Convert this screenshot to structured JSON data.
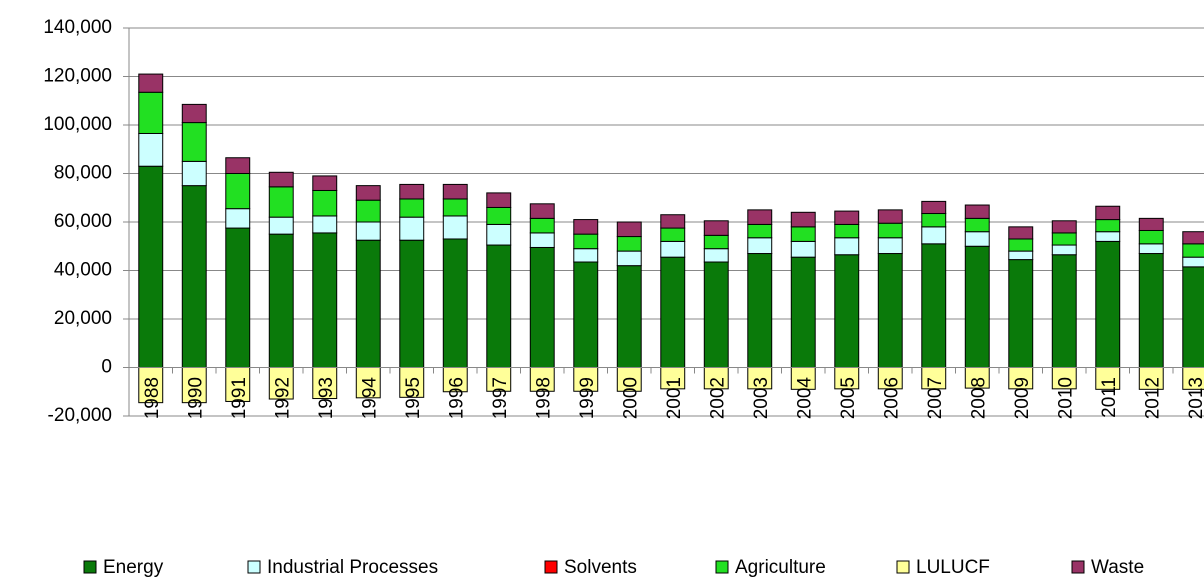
{
  "chart_data": {
    "type": "stacked-bar",
    "categories": [
      "1988",
      "1990",
      "1991",
      "1992",
      "1993",
      "1994",
      "1995",
      "1996",
      "1997",
      "1998",
      "1999",
      "2000",
      "2001",
      "2002",
      "2003",
      "2004",
      "2005",
      "2006",
      "2007",
      "2008",
      "2009",
      "2010",
      "2011",
      "2012",
      "2013"
    ],
    "series": [
      {
        "name": "Energy",
        "color": "#0a7a0a",
        "values": [
          83000,
          75000,
          57500,
          55000,
          55500,
          52500,
          52500,
          53000,
          50500,
          49500,
          43500,
          42000,
          45500,
          43500,
          47000,
          45500,
          46500,
          47000,
          51000,
          50000,
          44500,
          46500,
          52000,
          47000,
          41500
        ]
      },
      {
        "name": "Industrial Processes",
        "color": "#ccffff",
        "values": [
          13500,
          10000,
          8000,
          7000,
          7000,
          7500,
          9500,
          9500,
          8500,
          6000,
          5500,
          6000,
          6500,
          5500,
          6500,
          6500,
          7000,
          6500,
          7000,
          6000,
          3500,
          4000,
          4000,
          4000,
          4000
        ]
      },
      {
        "name": "Solvents",
        "color": "#ff0000",
        "values": [
          0,
          0,
          0,
          0,
          0,
          0,
          0,
          0,
          0,
          0,
          0,
          0,
          0,
          0,
          0,
          0,
          0,
          0,
          0,
          0,
          0,
          0,
          0,
          0,
          0
        ]
      },
      {
        "name": "Agriculture",
        "color": "#22e022",
        "values": [
          17000,
          16000,
          14500,
          12500,
          10500,
          9000,
          7500,
          7000,
          7000,
          6000,
          6000,
          6000,
          5500,
          5500,
          5500,
          6000,
          5500,
          6000,
          5500,
          5500,
          5000,
          5000,
          5000,
          5500,
          5500
        ]
      },
      {
        "name": "LULUCF",
        "color": "#ffff99",
        "values": [
          -14500,
          -14500,
          -14000,
          -13000,
          -12800,
          -12500,
          -12300,
          -10000,
          -9800,
          -9800,
          -9800,
          -9800,
          -8800,
          -8800,
          -8800,
          -9000,
          -8800,
          -8800,
          -8800,
          -8500,
          -8800,
          -8800,
          -9000,
          -9000,
          -9000
        ]
      },
      {
        "name": "Waste",
        "color": "#993366",
        "values": [
          7500,
          7500,
          6500,
          6000,
          6000,
          6000,
          6000,
          6000,
          6000,
          6000,
          6000,
          6000,
          5500,
          6000,
          6000,
          6000,
          5500,
          5500,
          5000,
          5500,
          5000,
          5000,
          5500,
          5000,
          5000
        ]
      }
    ],
    "ylim": [
      -20000,
      140000
    ],
    "yticks": [
      {
        "value": -20000,
        "label": "-20,000"
      },
      0,
      {
        "value": 20000,
        "label": "20,000"
      },
      {
        "value": 40000,
        "label": "40,000"
      },
      {
        "value": 60000,
        "label": "60,000"
      },
      {
        "value": 80000,
        "label": "80,000"
      },
      {
        "value": 100000,
        "label": "100,000"
      },
      {
        "value": 120000,
        "label": "120,000"
      },
      {
        "value": 140000,
        "label": "140,000"
      }
    ],
    "grid": true,
    "legend": "bottom"
  }
}
